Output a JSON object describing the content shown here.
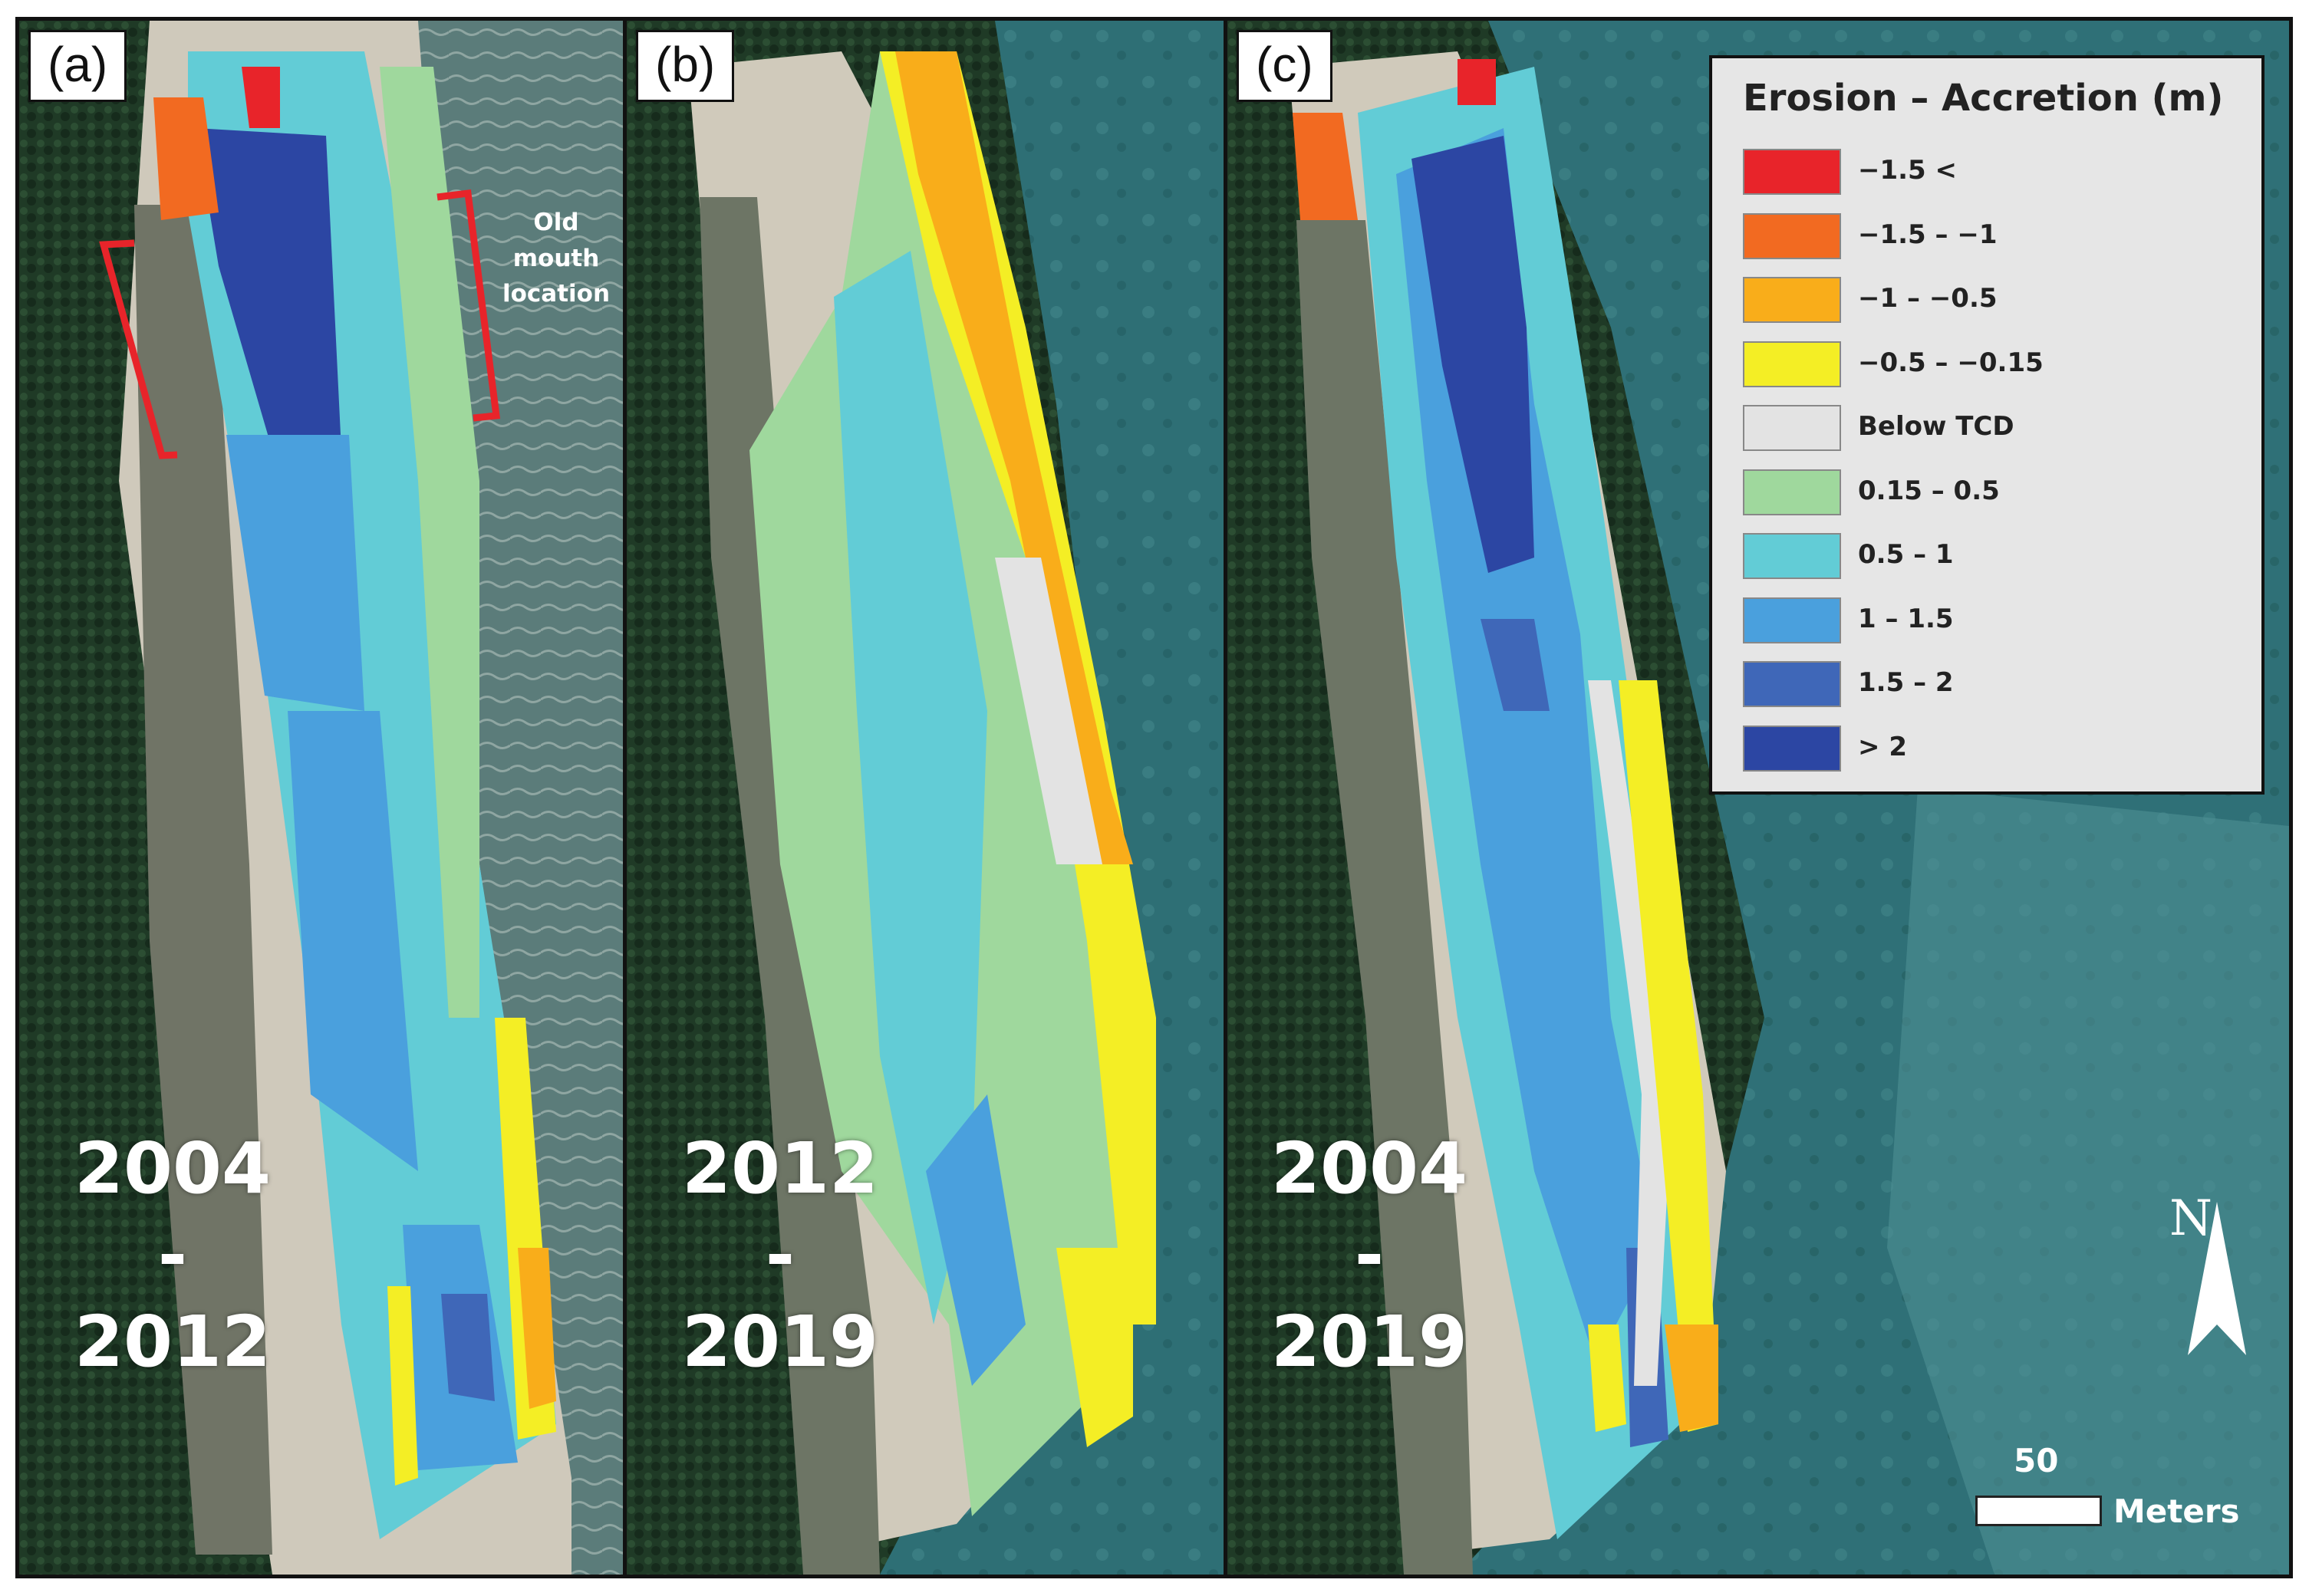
{
  "panels": [
    {
      "label": "(a)",
      "years": [
        "2004",
        "-",
        "2012"
      ]
    },
    {
      "label": "(b)",
      "years": [
        "2012",
        "-",
        "2019"
      ]
    },
    {
      "label": "(c)",
      "years": [
        "2004",
        "-",
        "2019"
      ]
    }
  ],
  "annotation": {
    "old_mouth_lines": [
      "Old",
      "mouth",
      "location"
    ]
  },
  "legend": {
    "title": "Erosion – Accretion (m)",
    "items": [
      {
        "label": "−1.5 <",
        "color": "#e8242a"
      },
      {
        "label": "−1.5 – −1",
        "color": "#f26a21"
      },
      {
        "label": "−1 – −0.5",
        "color": "#f9ad1a"
      },
      {
        "label": "−0.5 – −0.15",
        "color": "#f4ee25"
      },
      {
        "label": "Below TCD",
        "color": "#e3e3e3"
      },
      {
        "label": "0.15 – 0.5",
        "color": "#9fd89d"
      },
      {
        "label": "0.5 – 1",
        "color": "#62ccd6"
      },
      {
        "label": "1 – 1.5",
        "color": "#4aa0dd"
      },
      {
        "label": "1.5 – 2",
        "color": "#3f67b8"
      },
      {
        "label": "> 2",
        "color": "#2c46a3"
      }
    ]
  },
  "scale": {
    "value": "50",
    "unit": "Meters"
  },
  "north": {
    "letter": "N"
  },
  "colors": {
    "forest": "#1f3a26",
    "sea": "#2e6f75",
    "lagoon": "#6f7566",
    "sand": "#d8d3c6"
  }
}
